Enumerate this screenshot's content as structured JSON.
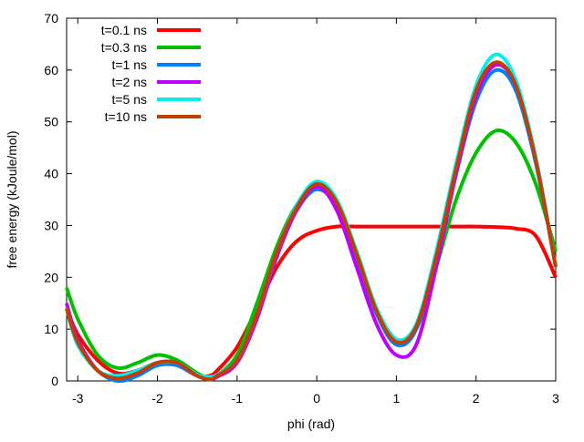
{
  "chart_data": {
    "type": "line",
    "title": "",
    "xlabel": "phi (rad)",
    "ylabel": "free energy (kJoule/mol)",
    "xlim": [
      -3.14,
      3.0
    ],
    "ylim": [
      0,
      70
    ],
    "xticks": [
      -3,
      -2,
      -1,
      0,
      1,
      2,
      3
    ],
    "yticks": [
      0,
      10,
      20,
      30,
      40,
      50,
      60,
      70
    ],
    "grid": false,
    "legend_position": "top-left",
    "x": [
      -3.14,
      -3.0,
      -2.75,
      -2.5,
      -2.25,
      -2.0,
      -1.75,
      -1.5,
      -1.35,
      -1.25,
      -1.0,
      -0.75,
      -0.5,
      -0.25,
      0.0,
      0.25,
      0.5,
      0.75,
      1.0,
      1.25,
      1.5,
      1.75,
      2.0,
      2.25,
      2.5,
      2.75,
      3.0
    ],
    "series": [
      {
        "name": "t=0.1 ns",
        "color": "#ff0000",
        "values": [
          14,
          9,
          4,
          1.5,
          2,
          3.5,
          3,
          1,
          1,
          2,
          6.5,
          14,
          22,
          27,
          29,
          29.8,
          29.8,
          29.8,
          29.8,
          29.8,
          29.8,
          29.8,
          29.8,
          29.7,
          29.4,
          28,
          20
        ]
      },
      {
        "name": "t=0.3 ns",
        "color": "#00c000",
        "values": [
          18,
          12,
          5,
          2.5,
          3.5,
          5,
          4,
          1.5,
          0.5,
          1,
          5,
          15,
          26,
          34,
          37,
          34,
          25,
          14,
          8,
          10,
          22,
          35,
          44,
          48.3,
          46,
          38,
          25
        ]
      },
      {
        "name": "t=1 ns",
        "color": "#0080ff",
        "values": [
          14,
          7,
          2,
          0,
          1,
          3,
          3,
          1,
          0.5,
          1,
          4,
          13,
          25,
          33,
          37,
          34,
          24,
          13,
          7,
          10,
          24,
          40,
          54,
          60,
          56,
          42,
          22
        ]
      },
      {
        "name": "t=2 ns",
        "color": "#c000ff",
        "values": [
          15,
          8,
          2,
          0.5,
          1.5,
          3.5,
          3.5,
          1,
          0.3,
          0.8,
          3.5,
          12,
          24,
          33,
          37.5,
          33,
          22,
          11,
          5,
          7,
          22,
          40,
          55,
          61,
          57,
          43,
          22
        ]
      },
      {
        "name": "t=5 ns",
        "color": "#00eeee",
        "values": [
          14,
          7,
          2,
          1,
          2,
          3.5,
          3.5,
          1.2,
          0.8,
          1.2,
          4,
          13,
          25,
          34,
          38.5,
          35,
          25,
          14,
          8,
          11,
          25,
          42,
          57,
          63,
          58,
          43,
          22
        ]
      },
      {
        "name": "t=10 ns",
        "color": "#c04000",
        "values": [
          14,
          7.5,
          2,
          0.5,
          1.5,
          3.5,
          3.5,
          1,
          0.3,
          1,
          4,
          13,
          25,
          33.5,
          38,
          34.5,
          24.5,
          13.5,
          7.5,
          10.5,
          24,
          41,
          56,
          61.5,
          57,
          42.5,
          22
        ]
      }
    ]
  }
}
